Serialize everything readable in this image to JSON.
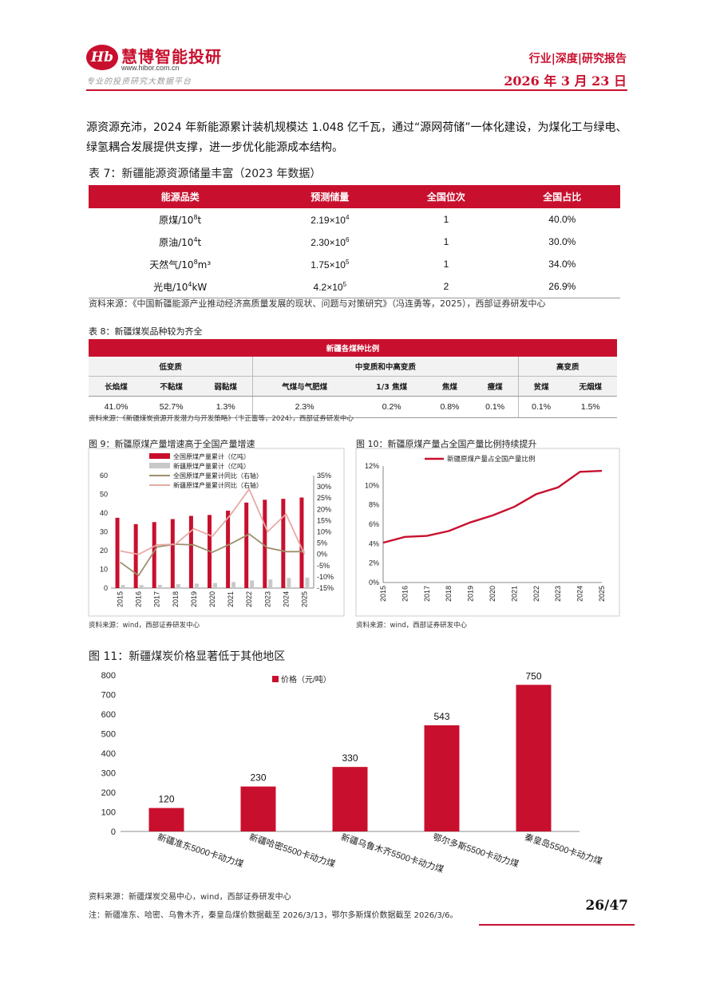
{
  "header": {
    "logo_mark": "Hb",
    "logo_text": "慧博智能投研",
    "logo_url": "www.hibor.com.cn",
    "logo_slogan": "专业的投资研究大数据平台",
    "report_type": "行业|深度|研究报告",
    "date": "2026 年 3 月 23 日"
  },
  "intro_paragraph": "源资源充沛，2024 年新能源累计装机规模达 1.048 亿千瓦，通过“源网荷储”一体化建设，为煤化工与绿电、绿氢耦合发展提供支撑，进一步优化能源成本结构。",
  "table7": {
    "title": "表 7：新疆能源资源储量丰富（2023 年数据）",
    "headers": [
      "能源品类",
      "预测储量",
      "全国位次",
      "全国占比"
    ],
    "rows": [
      {
        "name_base": "原煤/10",
        "name_exp": "8",
        "name_unit": "t",
        "reserve_base": "2.19×10",
        "reserve_exp": "4",
        "rank": "1",
        "share": "40.0%"
      },
      {
        "name_base": "原油/10",
        "name_exp": "4",
        "name_unit": "t",
        "reserve_base": "2.30×10",
        "reserve_exp": "6",
        "rank": "1",
        "share": "30.0%"
      },
      {
        "name_base": "天然气/10",
        "name_exp": "8",
        "name_unit": "m³",
        "reserve_base": "1.75×10",
        "reserve_exp": "5",
        "rank": "1",
        "share": "34.0%"
      },
      {
        "name_base": "光电/10",
        "name_exp": "4",
        "name_unit": "kW",
        "reserve_base": "4.2×10",
        "reserve_exp": "5",
        "rank": "2",
        "share": "26.9%"
      }
    ],
    "source": "资料来源：《中国新疆能源产业推动经济高质量发展的现状、问题与对策研究》（冯连勇等，2025），西部证券研发中心"
  },
  "table8": {
    "title": "表 8：新疆煤炭品种较为齐全",
    "top_header": "新疆各煤种比例",
    "groups": [
      "低变质",
      "中变质和中高变质",
      "高变质"
    ],
    "types": [
      "长焰煤",
      "不黏煤",
      "弱黏煤",
      "气煤与气肥煤",
      "1/3 焦煤",
      "焦煤",
      "瘦煤",
      "贫煤",
      "无烟煤"
    ],
    "values": [
      "41.0%",
      "52.7%",
      "1.3%",
      "2.3%",
      "0.2%",
      "0.8%",
      "0.1%",
      "0.1%",
      "1.5%"
    ],
    "source": "资料来源：《新疆煤炭资源开发潜力与开发策略》（卞正富等，2024），西部证券研发中心"
  },
  "fig9": {
    "title": "图 9：新疆原煤产量增速高于全国产量增速",
    "source": "资料来源：wind，西部证券研发中心",
    "chart_data": {
      "type": "bar",
      "categories": [
        "2015",
        "2016",
        "2017",
        "2018",
        "2019",
        "2020",
        "2021",
        "2022",
        "2023",
        "2024",
        "2025"
      ],
      "y_ticks_left": [
        "0",
        "5",
        "10",
        "15",
        "20",
        "25",
        "30",
        "35",
        "40",
        "45",
        "50",
        "55",
        "60"
      ],
      "y_ticks_left_shown": [
        "0",
        "10",
        "20",
        "30",
        "40",
        "50",
        "60"
      ],
      "y_ticks_right": [
        "-15%",
        "-10%",
        "-5%",
        "0%",
        "5%",
        "10%",
        "15%",
        "20%",
        "25%",
        "30%",
        "35%"
      ],
      "ylim_left": [
        0,
        60
      ],
      "ylim_right": [
        -15,
        35
      ],
      "series": [
        {
          "name": "全国原煤产量累计（亿吨）",
          "type": "bar",
          "axis": "left",
          "color": "#c8102e",
          "values": [
            37.5,
            34.1,
            35.2,
            36.8,
            38.5,
            39.0,
            41.3,
            45.6,
            47.1,
            47.6,
            48.3
          ]
        },
        {
          "name": "新疆原煤产量累计（亿吨）",
          "type": "bar",
          "axis": "left",
          "color": "#c8c8c8",
          "values": [
            1.6,
            1.6,
            1.7,
            2.1,
            2.4,
            2.7,
            3.2,
            4.1,
            4.6,
            5.4,
            5.6
          ]
        },
        {
          "name": "全国原煤产量累计同比（右轴）",
          "type": "line",
          "axis": "right",
          "color": "#9e8f6a",
          "values": [
            -3.5,
            -9.4,
            3.3,
            4.5,
            4.2,
            0.9,
            4.7,
            9.0,
            2.9,
            1.2,
            1.2
          ]
        },
        {
          "name": "新疆原煤产量累计同比（右轴）",
          "type": "line",
          "axis": "right",
          "color": "#e6aaa4",
          "values": [
            1.5,
            0.0,
            4.2,
            4.5,
            11.4,
            8.0,
            17.7,
            29.0,
            10.1,
            17.9,
            0.0
          ]
        }
      ]
    }
  },
  "fig10": {
    "title": "图 10：新疆原煤产量占全国产量比例持续提升",
    "source": "资料来源：wind，西部证券研发中心",
    "chart_data": {
      "type": "line",
      "categories": [
        "2015",
        "2016",
        "2017",
        "2018",
        "2019",
        "2020",
        "2021",
        "2022",
        "2023",
        "2024",
        "2025"
      ],
      "y_ticks": [
        "0%",
        "2%",
        "4%",
        "6%",
        "8%",
        "10%",
        "12%"
      ],
      "ylim": [
        0,
        12
      ],
      "series": [
        {
          "name": "新疆原煤产量占全国产量比例",
          "color": "#c8102e",
          "values": [
            4.1,
            4.7,
            4.8,
            5.3,
            6.2,
            6.9,
            7.8,
            9.1,
            9.8,
            11.4,
            11.5
          ]
        }
      ]
    }
  },
  "fig11": {
    "title": "图 11：新疆煤炭价格显著低于其他地区",
    "source": "资料来源：新疆煤炭交易中心，wind，西部证券研发中心",
    "note": "注：新疆准东、哈密、乌鲁木齐，秦皇岛煤价数据截至 2026/3/13，鄂尔多斯煤价数据截至 2026/3/6。",
    "chart_data": {
      "type": "bar",
      "categories": [
        "新疆准东5000卡动力煤",
        "新疆哈密5500卡动力煤",
        "新疆乌鲁木齐5500卡动力煤",
        "鄂尔多斯5500卡动力煤",
        "秦皇岛5500卡动力煤"
      ],
      "y_ticks": [
        "0",
        "100",
        "200",
        "300",
        "400",
        "500",
        "600",
        "700",
        "800"
      ],
      "ylim": [
        0,
        800
      ],
      "series": [
        {
          "name": "价格（元/吨）",
          "color": "#c8102e",
          "values": [
            120,
            230,
            330,
            543,
            750
          ]
        }
      ],
      "data_labels": [
        "120",
        "230",
        "330",
        "543",
        "750"
      ]
    }
  },
  "footer": {
    "page": "26/47"
  },
  "colors": {
    "brand": "#c8102e"
  }
}
